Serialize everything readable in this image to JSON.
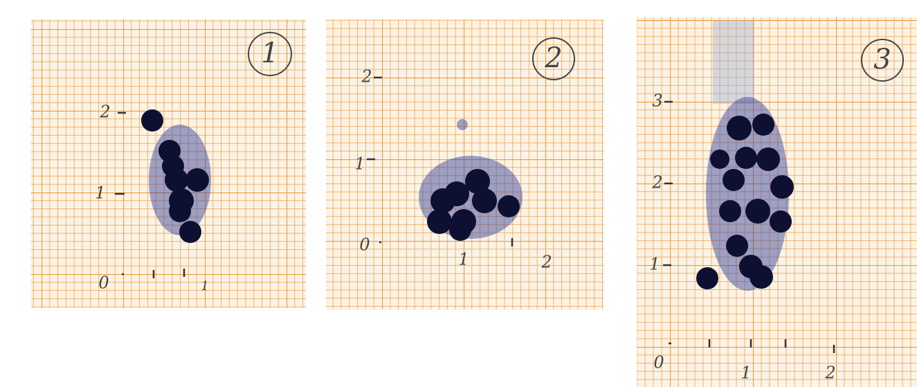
{
  "panels": [
    {
      "number": "1",
      "y_labels": [
        "2",
        "1"
      ],
      "x_labels": [
        "0",
        "1"
      ]
    },
    {
      "number": "2",
      "y_labels": [
        "2",
        "1",
        "0"
      ],
      "x_labels": [
        "1",
        "2"
      ]
    },
    {
      "number": "3",
      "y_labels": [
        "3",
        "2",
        "1"
      ],
      "x_labels": [
        "0",
        "1",
        "2"
      ]
    }
  ]
}
